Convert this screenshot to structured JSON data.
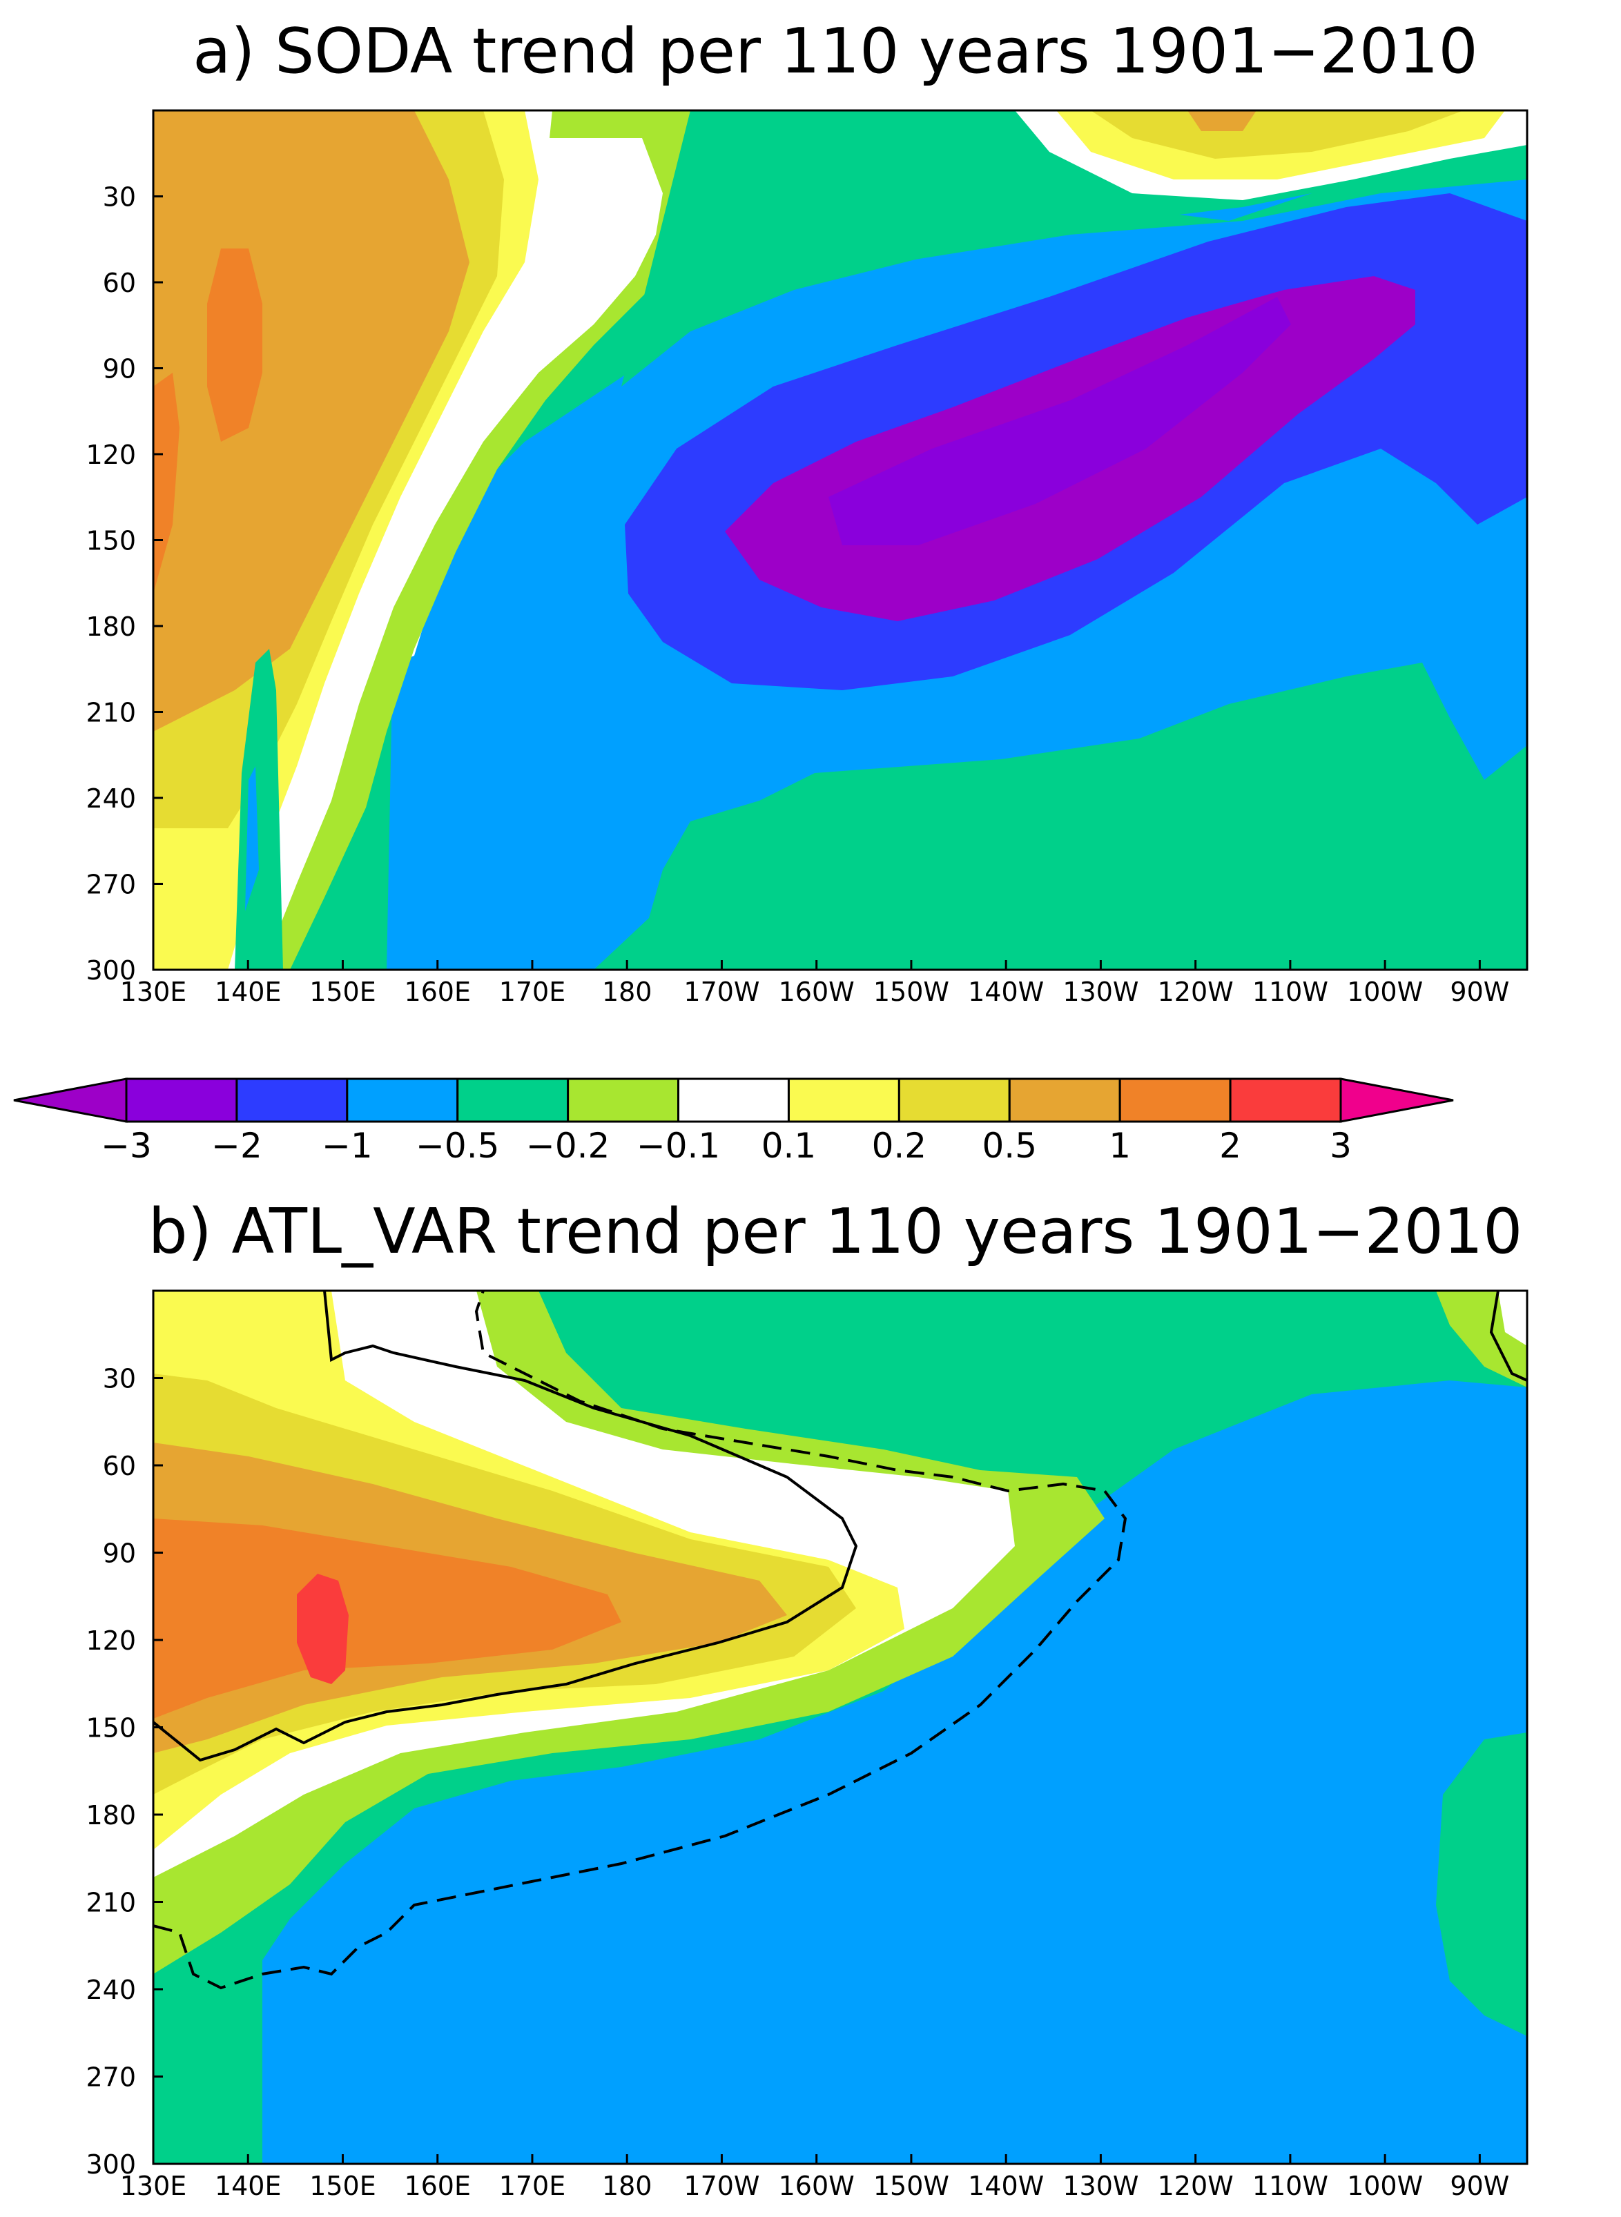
{
  "colors": {
    "lt_-3": "#9d00c8",
    "-3_-2": "#8a00dc",
    "-2_-1": "#2d3cff",
    "-1_-0.5": "#00a0ff",
    "-0.5_-0.2": "#00d08a",
    "-0.2_-0.1": "#a8e630",
    "-0.1_0.1": "#ffffff",
    "0.1_0.2": "#fafa50",
    "0.2_0.5": "#e6dc32",
    "0.5_1": "#e6a532",
    "1_2": "#f08228",
    "2_3": "#fa3c3c",
    "gt_3": "#f0008c"
  },
  "colorbar": {
    "labels": [
      "−3",
      "−2",
      "−1",
      "−0.5",
      "−0.2",
      "−0.1",
      "0.1",
      "0.2",
      "0.5",
      "1",
      "2",
      "3"
    ],
    "palette": [
      "#9d00c8",
      "#8a00dc",
      "#2d3cff",
      "#00a0ff",
      "#00d08a",
      "#a8e630",
      "#ffffff",
      "#fafa50",
      "#e6dc32",
      "#e6a532",
      "#f08228",
      "#fa3c3c",
      "#f0008c"
    ]
  },
  "chart_data": [
    {
      "type": "heatmap",
      "title": "a) SODA trend per 110 years 1901−2010",
      "xlabel": "",
      "ylabel": "",
      "x_ticks": [
        "130E",
        "140E",
        "150E",
        "160E",
        "170E",
        "180",
        "170W",
        "160W",
        "150W",
        "140W",
        "130W",
        "120W",
        "110W",
        "100W",
        "90W"
      ],
      "y_ticks": [
        "30",
        "60",
        "90",
        "120",
        "150",
        "180",
        "210",
        "240",
        "270",
        "300"
      ],
      "xlim": [
        "130E",
        "85W"
      ],
      "ylim": [
        300,
        0
      ],
      "fields": [
        {
          "level": "0.5_1",
          "region": "west 130E-150E, 0-180"
        },
        {
          "level": "1_2",
          "region": "~140E, 60-120 and 130E, 100-150"
        },
        {
          "level": "-2_-1",
          "region": "170W-100W, 40-200"
        },
        {
          "level": "-3_-2",
          "region": "170W-105W, 60-170"
        },
        {
          "level": "-0.5_-0.2",
          "region": "east 165W-85W, 150-300"
        },
        {
          "level": "0.2_0.5",
          "region": "130W-100W, 0-40"
        }
      ]
    },
    {
      "type": "heatmap",
      "title": "b) ATL_VAR trend per 110 years 1901−2010",
      "xlabel": "",
      "ylabel": "",
      "x_ticks": [
        "130E",
        "140E",
        "150E",
        "160E",
        "170E",
        "180",
        "170W",
        "160W",
        "150W",
        "140W",
        "130W",
        "120W",
        "110W",
        "100W",
        "90W"
      ],
      "y_ticks": [
        "30",
        "60",
        "90",
        "120",
        "150",
        "180",
        "210",
        "240",
        "270",
        "300"
      ],
      "xlim": [
        "130E",
        "85W"
      ],
      "ylim": [
        300,
        0
      ],
      "fields": [
        {
          "level": "1_2",
          "region": "130E-170E, 70-170"
        },
        {
          "level": "2_3",
          "region": "~150E, 110-130"
        },
        {
          "level": "0.5_1",
          "region": "130E-180, 40-180"
        },
        {
          "level": "-1_-0.5",
          "region": "east 150W-85W, 40-300"
        },
        {
          "level": "-0.5_-0.2",
          "region": "shelf 150E-170E 0-60 and 140W-85W 0-40"
        }
      ],
      "contours": [
        {
          "style": "solid",
          "value": "0.1"
        },
        {
          "style": "dashed",
          "value": "-0.1"
        }
      ]
    }
  ]
}
